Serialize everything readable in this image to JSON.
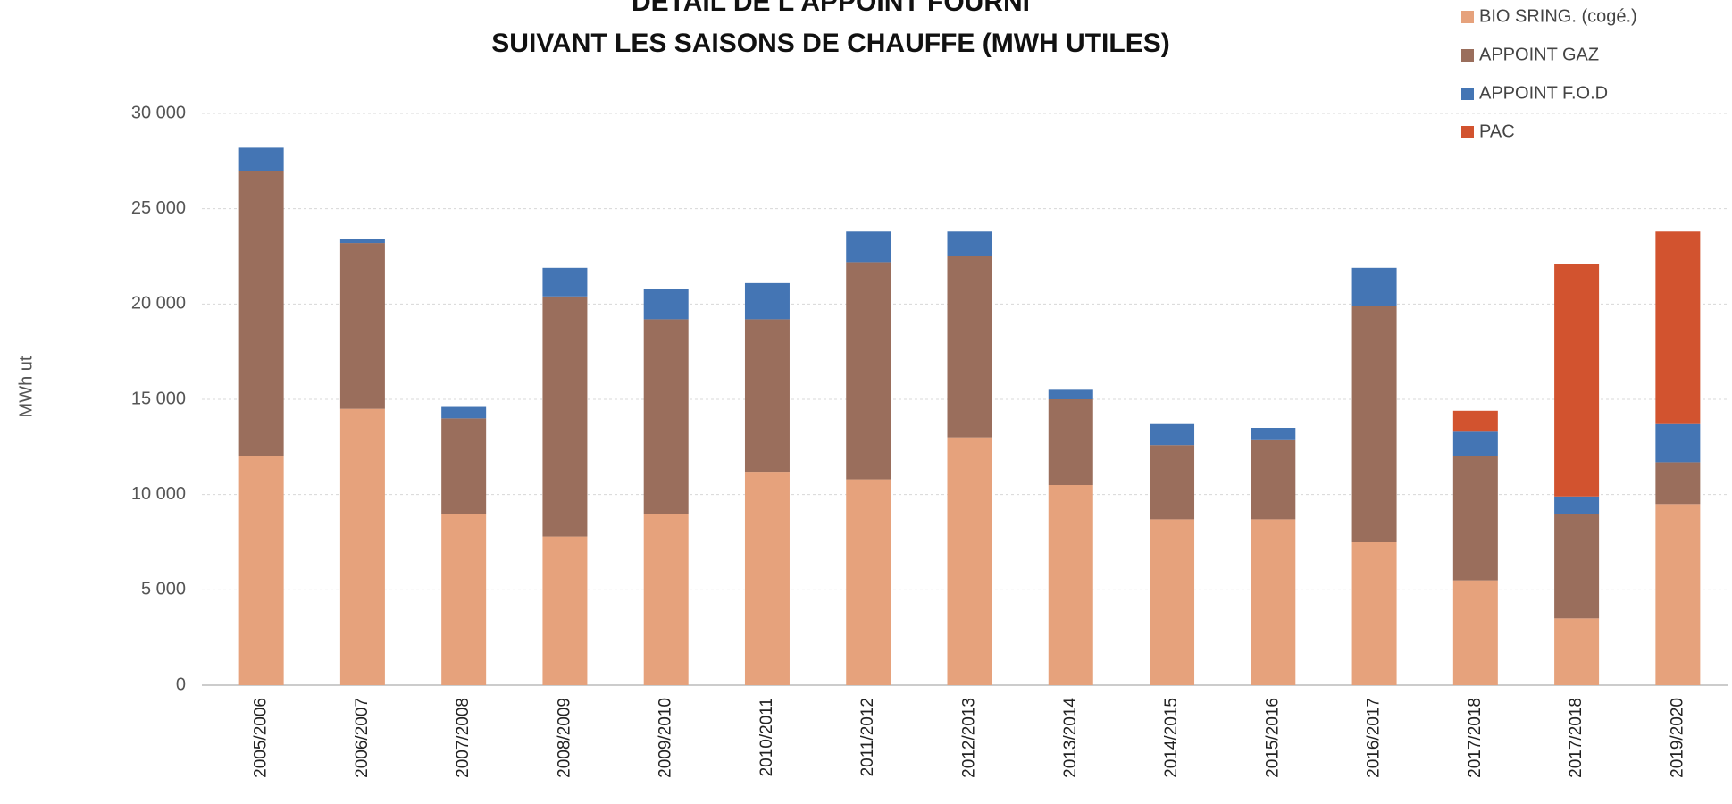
{
  "chart_data": {
    "type": "stacked_bar",
    "title": "DÉTAIL DE L'APPOINT FOURNI",
    "subtitle": "SUIVANT LES SAISONS DE CHAUFFE (MWH UTILES)",
    "y_label": "MWh ut",
    "categories": [
      "2005/2006",
      "2006/2007",
      "2007/2008",
      "2008/2009",
      "2009/2010",
      "2010/2011",
      "2011/2012",
      "2012/2013",
      "2013/2014",
      "2014/2015",
      "2015/2016",
      "2016/2017",
      "2017/2018",
      "2017/2018",
      "2019/2020"
    ],
    "series": [
      {
        "name": "BIO SRING. (cogé.)",
        "color": "#e6a27c",
        "values": [
          12000,
          14500,
          9000,
          7800,
          9000,
          11200,
          10800,
          13000,
          10500,
          8700,
          8700,
          7500,
          5500,
          3500,
          9500
        ]
      },
      {
        "name": "APPOINT GAZ",
        "color": "#9a6e5c",
        "values": [
          15000,
          8700,
          5000,
          12600,
          10200,
          8000,
          11400,
          9500,
          4500,
          3900,
          4200,
          12400,
          6500,
          5500,
          2200
        ]
      },
      {
        "name": "APPOINT F.O.D",
        "color": "#4475b4",
        "values": [
          1200,
          200,
          600,
          1500,
          1600,
          1900,
          1600,
          1300,
          500,
          1100,
          600,
          2000,
          1300,
          900,
          2000
        ]
      },
      {
        "name": "PAC",
        "color": "#d2532f",
        "values": [
          0,
          0,
          0,
          0,
          0,
          0,
          0,
          0,
          0,
          0,
          0,
          0,
          1100,
          12200,
          10100
        ]
      }
    ],
    "ylim": [
      0,
      30000
    ],
    "yticks": [
      0,
      {
        "value": 5000,
        "label": "5 000"
      },
      {
        "value": 10000,
        "label": "10 000"
      },
      {
        "value": 15000,
        "label": "15 000"
      },
      {
        "value": 20000,
        "label": "20 000"
      },
      {
        "value": 25000,
        "label": "25 000"
      },
      {
        "value": 30000,
        "label": "30 000"
      }
    ],
    "grid": true
  }
}
